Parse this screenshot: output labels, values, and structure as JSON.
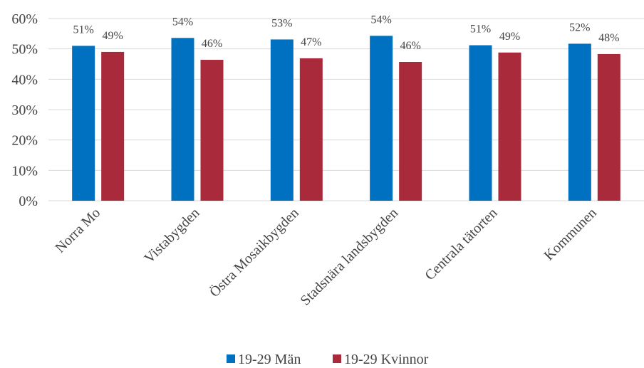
{
  "chart_data": {
    "type": "bar",
    "categories": [
      "Norra Mo",
      "Vistabygden",
      "Östra Mosaikbygden",
      "Stadsnära landsbygden",
      "Centrala tätorten",
      "Kommunen"
    ],
    "series": [
      {
        "name": "19-29 Män",
        "color": "#0070C0",
        "values": [
          0.51,
          0.536,
          0.531,
          0.543,
          0.512,
          0.517
        ],
        "labels": [
          "51%",
          "54%",
          "53%",
          "54%",
          "51%",
          "52%"
        ]
      },
      {
        "name": "19-29 Kvinnor",
        "color": "#A92A3A",
        "values": [
          0.49,
          0.464,
          0.469,
          0.457,
          0.488,
          0.483
        ],
        "labels": [
          "49%",
          "46%",
          "47%",
          "46%",
          "49%",
          "48%"
        ]
      }
    ],
    "y_ticks": [
      "0%",
      "10%",
      "20%",
      "30%",
      "40%",
      "50%",
      "60%"
    ],
    "ylim": [
      0,
      0.6
    ],
    "grid": true,
    "legend_position": "bottom",
    "gridline_color": "#D9D9D9"
  }
}
